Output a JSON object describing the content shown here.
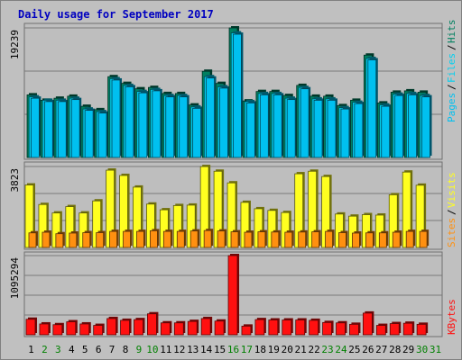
{
  "title": "Daily usage for September 2017",
  "colors": {
    "background": "#c0c0c0",
    "plot_bg": "#bebebe",
    "title": "#0000c0",
    "hits": "#008060",
    "files": "#00d0f0",
    "pages": "#00c0f0",
    "visits": "#ffff20",
    "sites": "#ff9010",
    "kbytes": "#ff1010",
    "weekend_day": "#008000",
    "weekday_day": "#000000",
    "grid": "#7a7a7a"
  },
  "chart_data": [
    {
      "type": "bar",
      "panel": "hits-files-pages",
      "ytick_label": "19239",
      "ylim": [
        0,
        19239
      ],
      "categories": [
        "1",
        "2",
        "3",
        "4",
        "5",
        "6",
        "7",
        "8",
        "9",
        "10",
        "11",
        "12",
        "13",
        "14",
        "15",
        "16",
        "17",
        "18",
        "19",
        "20",
        "21",
        "22",
        "23",
        "24",
        "25",
        "26",
        "27",
        "28",
        "29",
        "30"
      ],
      "series": [
        {
          "name": "Hits",
          "values": [
            9300,
            8500,
            8800,
            9100,
            7600,
            7100,
            12000,
            11000,
            10200,
            10400,
            9500,
            9500,
            7800,
            12800,
            11000,
            19239,
            8400,
            9800,
            9800,
            9200,
            10700,
            9100,
            9100,
            7700,
            8500,
            15200,
            8100,
            9700,
            9900,
            9700
          ]
        },
        {
          "name": "Files",
          "values": [
            9000,
            8500,
            8500,
            8800,
            7200,
            6800,
            11700,
            10700,
            9800,
            10100,
            9200,
            9200,
            7500,
            12000,
            10500,
            18500,
            8300,
            9500,
            9500,
            8800,
            10400,
            8700,
            8700,
            7400,
            8200,
            14700,
            7800,
            9400,
            9500,
            9200
          ]
        },
        {
          "name": "Pages",
          "values": [
            8800,
            8300,
            8300,
            8600,
            7000,
            6600,
            11500,
            10500,
            9600,
            9900,
            9000,
            9000,
            7300,
            11800,
            10300,
            18300,
            8100,
            9300,
            9300,
            8600,
            10200,
            8500,
            8500,
            7200,
            8000,
            14500,
            7600,
            9200,
            9300,
            9000
          ]
        }
      ],
      "legend": [
        "Pages",
        "Files",
        "Hits"
      ]
    },
    {
      "type": "bar",
      "panel": "visits-sites",
      "ytick_label": "3823",
      "ylim": [
        0,
        3823
      ],
      "categories": [
        "1",
        "2",
        "3",
        "4",
        "5",
        "6",
        "7",
        "8",
        "9",
        "10",
        "11",
        "12",
        "13",
        "14",
        "15",
        "16",
        "17",
        "18",
        "19",
        "20",
        "21",
        "22",
        "23",
        "24",
        "25",
        "26",
        "27",
        "28",
        "29",
        "30"
      ],
      "series": [
        {
          "name": "Visits",
          "values": [
            2950,
            2030,
            1630,
            1930,
            1630,
            2200,
            3650,
            3400,
            2850,
            2050,
            1780,
            1980,
            2000,
            3820,
            3600,
            3050,
            2130,
            1830,
            1750,
            1650,
            3480,
            3600,
            3350,
            1580,
            1480,
            1550,
            1530,
            2490,
            3560,
            2940
          ]
        },
        {
          "name": "Sites",
          "values": [
            690,
            720,
            650,
            680,
            700,
            700,
            760,
            760,
            760,
            790,
            760,
            760,
            780,
            800,
            780,
            740,
            720,
            740,
            730,
            720,
            730,
            740,
            760,
            700,
            680,
            690,
            690,
            720,
            760,
            760
          ]
        }
      ],
      "legend": [
        "Sites",
        "Visits"
      ]
    },
    {
      "type": "bar",
      "panel": "kbytes",
      "ytick_label": "1095294",
      "ylim": [
        0,
        1095294
      ],
      "categories": [
        "1",
        "2",
        "3",
        "4",
        "5",
        "6",
        "7",
        "8",
        "9",
        "10",
        "11",
        "12",
        "13",
        "14",
        "15",
        "16",
        "17",
        "18",
        "19",
        "20",
        "21",
        "22",
        "23",
        "24",
        "25",
        "26",
        "27",
        "28",
        "29",
        "30"
      ],
      "series": [
        {
          "name": "KBytes",
          "values": [
            215000,
            150000,
            140000,
            180000,
            150000,
            130000,
            225000,
            200000,
            210000,
            290000,
            165000,
            165000,
            185000,
            225000,
            190000,
            1095294,
            120000,
            210000,
            205000,
            205000,
            205000,
            200000,
            170000,
            165000,
            145000,
            300000,
            130000,
            155000,
            160000,
            145000
          ]
        }
      ],
      "legend": [
        "KBytes"
      ]
    }
  ],
  "days": [
    {
      "label": "1",
      "weekend": false
    },
    {
      "label": "2",
      "weekend": true
    },
    {
      "label": "3",
      "weekend": true
    },
    {
      "label": "4",
      "weekend": false
    },
    {
      "label": "5",
      "weekend": false
    },
    {
      "label": "6",
      "weekend": false
    },
    {
      "label": "7",
      "weekend": false
    },
    {
      "label": "8",
      "weekend": false
    },
    {
      "label": "9",
      "weekend": true
    },
    {
      "label": "10",
      "weekend": true
    },
    {
      "label": "11",
      "weekend": false
    },
    {
      "label": "12",
      "weekend": false
    },
    {
      "label": "13",
      "weekend": false
    },
    {
      "label": "14",
      "weekend": false
    },
    {
      "label": "15",
      "weekend": false
    },
    {
      "label": "16",
      "weekend": true
    },
    {
      "label": "17",
      "weekend": true
    },
    {
      "label": "18",
      "weekend": false
    },
    {
      "label": "19",
      "weekend": false
    },
    {
      "label": "20",
      "weekend": false
    },
    {
      "label": "21",
      "weekend": false
    },
    {
      "label": "22",
      "weekend": false
    },
    {
      "label": "23",
      "weekend": true
    },
    {
      "label": "24",
      "weekend": true
    },
    {
      "label": "25",
      "weekend": false
    },
    {
      "label": "26",
      "weekend": false
    },
    {
      "label": "27",
      "weekend": false
    },
    {
      "label": "28",
      "weekend": false
    },
    {
      "label": "29",
      "weekend": false
    },
    {
      "label": "30",
      "weekend": true
    },
    {
      "label": "31",
      "weekend": true
    }
  ]
}
